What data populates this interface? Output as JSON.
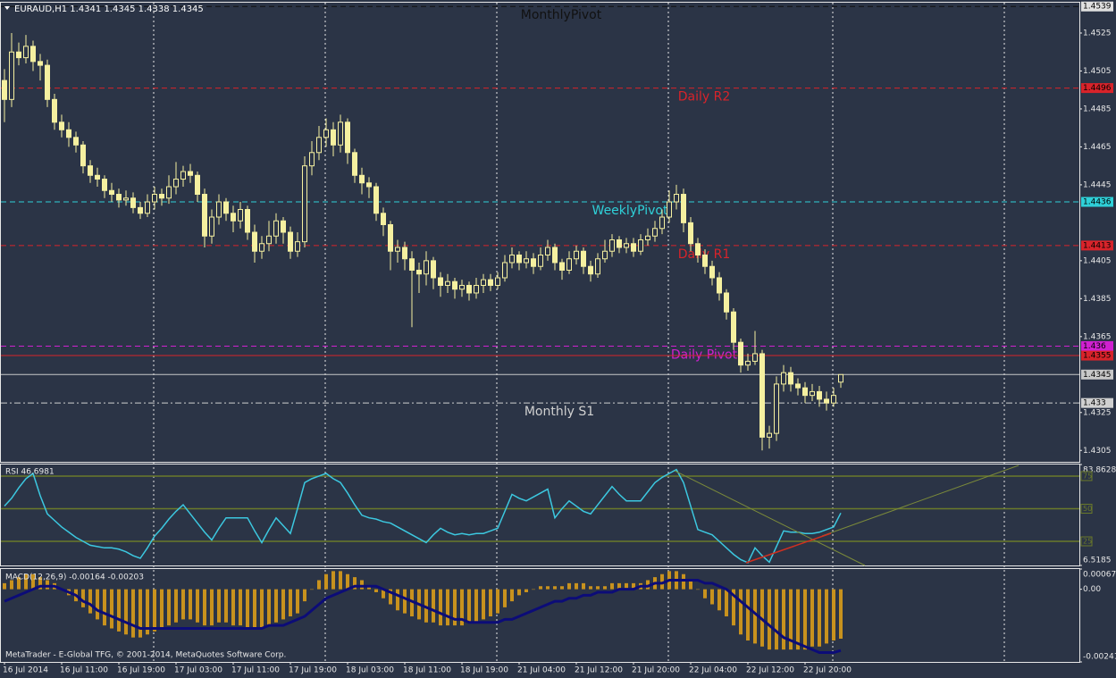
{
  "chart_data": [
    {
      "type": "candlestick",
      "title": "EURAUD,H1  1.4341 1.4345 1.4338 1.4345",
      "color": "#f5f0a0",
      "categories": [
        "16 Jul 2014",
        null,
        null,
        null,
        null,
        null,
        null,
        null,
        "16 Jul 11:00",
        null,
        null,
        null,
        null,
        null,
        null,
        null,
        "16 Jul 19:00",
        null,
        null,
        null,
        null,
        null,
        null,
        null,
        "17 Jul 03:00",
        null,
        null,
        null,
        null,
        null,
        null,
        null,
        "17 Jul 11:00",
        null,
        null,
        null,
        null,
        null,
        null,
        null,
        "17 Jul 19:00",
        null,
        null,
        null,
        null,
        null,
        null,
        null,
        "18 Jul 03:00",
        null,
        null,
        null,
        null,
        null,
        null,
        null,
        "18 Jul 11:00",
        null,
        null,
        null,
        null,
        null,
        null,
        null,
        "18 Jul 19:00",
        null,
        null,
        null,
        null,
        null,
        null,
        null,
        "21 Jul 04:00",
        null,
        null,
        null,
        null,
        null,
        null,
        null,
        "21 Jul 12:00",
        null,
        null,
        null,
        null,
        null,
        null,
        null,
        "21 Jul 20:00",
        null,
        null,
        null,
        null,
        null,
        null,
        null,
        "22 Jul 04:00",
        null,
        null,
        null,
        null,
        null,
        null,
        null,
        "22 Jul 12:00",
        null,
        null,
        null,
        null,
        null,
        null,
        null,
        "22 Jul 20:00",
        null,
        null,
        null,
        null,
        null
      ],
      "open": [
        1.45,
        1.449,
        1.4515,
        1.4512,
        1.4518,
        1.451,
        1.4508,
        1.449,
        1.4478,
        1.4474,
        1.447,
        1.4466,
        1.4455,
        1.445,
        1.4448,
        1.4442,
        1.444,
        1.4437,
        1.4438,
        1.4433,
        1.443,
        1.4436,
        1.444,
        1.4438,
        1.4444,
        1.4448,
        1.4452,
        1.445,
        1.444,
        1.4418,
        1.4428,
        1.4436,
        1.443,
        1.4426,
        1.4432,
        1.442,
        1.441,
        1.4414,
        1.4418,
        1.4426,
        1.442,
        1.441,
        1.4415,
        1.4455,
        1.4462,
        1.447,
        1.4474,
        1.4466,
        1.4478,
        1.4462,
        1.445,
        1.4446,
        1.4444,
        1.443,
        1.4424,
        1.441,
        1.4412,
        1.4406,
        1.44,
        1.4398,
        1.4405,
        1.4396,
        1.4392,
        1.4394,
        1.439,
        1.4392,
        1.4388,
        1.4392,
        1.4395,
        1.4392,
        1.4396,
        1.4404,
        1.4408,
        1.4404,
        1.4406,
        1.4402,
        1.4408,
        1.4412,
        1.4404,
        1.44,
        1.4406,
        1.441,
        1.4402,
        1.4398,
        1.4406,
        1.441,
        1.4416,
        1.4412,
        1.4414,
        1.441,
        1.4416,
        1.4418,
        1.4422,
        1.4428,
        1.4436,
        1.444,
        1.4425,
        1.4414,
        1.4408,
        1.4402,
        1.4396,
        1.4388,
        1.4378,
        1.4362,
        1.435,
        1.4352,
        1.4356,
        1.4312,
        1.4314,
        1.434,
        1.4346,
        1.434,
        1.4338,
        1.4334,
        1.4336,
        1.4332,
        1.433,
        1.4341
      ],
      "high": [
        1.4506,
        1.4525,
        1.452,
        1.4524,
        1.4521,
        1.4514,
        1.4511,
        1.4493,
        1.4482,
        1.4478,
        1.4473,
        1.4468,
        1.4458,
        1.4454,
        1.445,
        1.4446,
        1.4443,
        1.4442,
        1.4441,
        1.4436,
        1.444,
        1.4444,
        1.4443,
        1.445,
        1.4457,
        1.4455,
        1.4456,
        1.4452,
        1.4443,
        1.4432,
        1.444,
        1.4438,
        1.4434,
        1.4436,
        1.4434,
        1.4424,
        1.4418,
        1.4426,
        1.443,
        1.4428,
        1.4423,
        1.442,
        1.446,
        1.4468,
        1.4476,
        1.448,
        1.4478,
        1.4482,
        1.448,
        1.4464,
        1.4454,
        1.4449,
        1.4446,
        1.4433,
        1.4426,
        1.4416,
        1.4415,
        1.441,
        1.4404,
        1.441,
        1.4407,
        1.4399,
        1.4398,
        1.4396,
        1.4395,
        1.4394,
        1.4396,
        1.4398,
        1.4398,
        1.4399,
        1.4408,
        1.4412,
        1.441,
        1.441,
        1.4409,
        1.4412,
        1.4416,
        1.4414,
        1.4406,
        1.441,
        1.4413,
        1.4412,
        1.4405,
        1.4409,
        1.4416,
        1.4419,
        1.4418,
        1.4417,
        1.4417,
        1.4419,
        1.4422,
        1.4426,
        1.4432,
        1.4442,
        1.4445,
        1.4443,
        1.4428,
        1.4417,
        1.4411,
        1.4405,
        1.4399,
        1.439,
        1.438,
        1.4364,
        1.4356,
        1.4368,
        1.4358,
        1.4318,
        1.4344,
        1.435,
        1.4349,
        1.4343,
        1.4341,
        1.434,
        1.4339,
        1.4336,
        1.4338,
        1.4345
      ],
      "low": [
        1.4478,
        1.4486,
        1.4508,
        1.4509,
        1.4505,
        1.45,
        1.4486,
        1.4474,
        1.447,
        1.4465,
        1.4462,
        1.4451,
        1.4446,
        1.4444,
        1.4438,
        1.4436,
        1.4433,
        1.4434,
        1.443,
        1.4427,
        1.4428,
        1.4432,
        1.4434,
        1.4435,
        1.444,
        1.4444,
        1.4446,
        1.4436,
        1.4412,
        1.4414,
        1.4424,
        1.4426,
        1.442,
        1.4422,
        1.4416,
        1.4404,
        1.4406,
        1.441,
        1.4414,
        1.4414,
        1.4406,
        1.4407,
        1.4412,
        1.445,
        1.4458,
        1.4465,
        1.446,
        1.4462,
        1.4456,
        1.4446,
        1.444,
        1.4438,
        1.4426,
        1.4418,
        1.44,
        1.4404,
        1.44,
        1.437,
        1.4388,
        1.4392,
        1.439,
        1.4386,
        1.4388,
        1.4385,
        1.4386,
        1.4384,
        1.4385,
        1.4388,
        1.4389,
        1.439,
        1.4394,
        1.4401,
        1.44,
        1.4401,
        1.4398,
        1.44,
        1.4405,
        1.44,
        1.4395,
        1.4398,
        1.4403,
        1.4398,
        1.4394,
        1.4396,
        1.4404,
        1.4407,
        1.4409,
        1.4409,
        1.4407,
        1.4408,
        1.4413,
        1.4415,
        1.4419,
        1.4425,
        1.4432,
        1.442,
        1.441,
        1.4404,
        1.4398,
        1.4392,
        1.4384,
        1.4374,
        1.4358,
        1.4346,
        1.4347,
        1.435,
        1.4305,
        1.4306,
        1.431,
        1.4336,
        1.4336,
        1.4334,
        1.433,
        1.4331,
        1.4328,
        1.4326,
        1.4328,
        1.4338
      ],
      "close": [
        1.449,
        1.4515,
        1.4512,
        1.4518,
        1.451,
        1.4508,
        1.449,
        1.4478,
        1.4474,
        1.447,
        1.4466,
        1.4455,
        1.445,
        1.4448,
        1.4442,
        1.444,
        1.4437,
        1.4438,
        1.4433,
        1.443,
        1.4436,
        1.444,
        1.4438,
        1.4444,
        1.4448,
        1.4452,
        1.445,
        1.444,
        1.4418,
        1.4428,
        1.4436,
        1.443,
        1.4426,
        1.4432,
        1.442,
        1.441,
        1.4414,
        1.4418,
        1.4426,
        1.442,
        1.441,
        1.4415,
        1.4455,
        1.4462,
        1.447,
        1.4474,
        1.4466,
        1.4478,
        1.4462,
        1.445,
        1.4446,
        1.4444,
        1.443,
        1.4424,
        1.441,
        1.4412,
        1.4406,
        1.44,
        1.4398,
        1.4405,
        1.4396,
        1.4392,
        1.4394,
        1.439,
        1.4392,
        1.4388,
        1.4392,
        1.4395,
        1.4392,
        1.4396,
        1.4404,
        1.4408,
        1.4404,
        1.4406,
        1.4402,
        1.4408,
        1.4412,
        1.4404,
        1.44,
        1.4406,
        1.441,
        1.4402,
        1.4398,
        1.4406,
        1.441,
        1.4416,
        1.4412,
        1.4414,
        1.441,
        1.4416,
        1.4418,
        1.4422,
        1.4428,
        1.4436,
        1.444,
        1.4425,
        1.4414,
        1.4408,
        1.4402,
        1.4396,
        1.4388,
        1.4378,
        1.4362,
        1.435,
        1.4352,
        1.4356,
        1.4312,
        1.4314,
        1.434,
        1.4346,
        1.434,
        1.4338,
        1.4334,
        1.4336,
        1.4332,
        1.433,
        1.4334,
        1.4345
      ],
      "ylim": [
        1.4299,
        1.4541
      ],
      "yticks": [
        1.4525,
        1.4505,
        1.4485,
        1.4465,
        1.4445,
        1.4405,
        1.4385,
        1.4365,
        1.4325,
        1.4305
      ],
      "levels": [
        {
          "name": "MonthlyPivot",
          "value": 1.4539,
          "color": "#111111",
          "dash": "dash"
        },
        {
          "name": "Daily R2",
          "value": 1.4496,
          "color": "#d8232a",
          "dash": "dash"
        },
        {
          "name": "WeeklyPivot",
          "value": 1.4436,
          "color": "#2fd0d8",
          "dash": "dash"
        },
        {
          "name": "Daily R1",
          "value": 1.4413,
          "color": "#d8232a",
          "dash": "dash"
        },
        {
          "name": "Daily Pivot",
          "value": 1.436,
          "color": "#d020d0",
          "dash": "dash"
        },
        {
          "value": 1.4355,
          "color": "#d8232a",
          "dash": "solid"
        },
        {
          "value": 1.4345,
          "color": "#c8c8c8",
          "dash": "solid"
        },
        {
          "name": "Monthly S1",
          "value": 1.433,
          "color": "#d0d0d0",
          "dash": "dashdot"
        }
      ]
    },
    {
      "type": "line",
      "title": "RSI 46.6981",
      "color": "#3cc8e0",
      "values": [
        52,
        58,
        66,
        73,
        77,
        60,
        46,
        41,
        36,
        32,
        28,
        25,
        22,
        21,
        20,
        20,
        19,
        17,
        14,
        12,
        20,
        29,
        35,
        42,
        48,
        53,
        46,
        39,
        32,
        26,
        35,
        43,
        43,
        43,
        43,
        33,
        24,
        34,
        43,
        37,
        31,
        50,
        70,
        73,
        75,
        77,
        73,
        70,
        62,
        53,
        45,
        43,
        42,
        40,
        39,
        36,
        33,
        30,
        27,
        24,
        30,
        35,
        32,
        30,
        31,
        30,
        31,
        31,
        33,
        35,
        48,
        61,
        58,
        56,
        59,
        62,
        65,
        43,
        50,
        56,
        52,
        48,
        46,
        53,
        60,
        67,
        61,
        56,
        56,
        56,
        63,
        70,
        74,
        77,
        80,
        70,
        52,
        34,
        32,
        30,
        25,
        20,
        15,
        11,
        8.6,
        20,
        14,
        9,
        21,
        33,
        32,
        32,
        31,
        31,
        32,
        34,
        36,
        46.6981
      ],
      "ylim": [
        6.5185,
        83.8628
      ],
      "yticks": [
        83.8628,
        6.5185
      ],
      "levels": [
        75,
        50,
        25
      ],
      "level_color": "#6b7a2a"
    },
    {
      "type": "macd",
      "title": "MACD(12,26,9) -0.00164 -0.00203",
      "histogram": [
        0.0002,
        0.0003,
        0.0004,
        0.0005,
        0.0005,
        0.0004,
        0.0003,
        0.0002,
        0,
        -0.0002,
        -0.0004,
        -0.0006,
        -0.0008,
        -0.001,
        -0.0012,
        -0.0013,
        -0.0014,
        -0.0015,
        -0.0016,
        -0.0016,
        -0.0015,
        -0.0014,
        -0.0013,
        -0.0012,
        -0.0011,
        -0.001,
        -0.001,
        -0.0011,
        -0.0012,
        -0.0012,
        -0.0011,
        -0.0011,
        -0.0012,
        -0.0012,
        -0.0013,
        -0.0013,
        -0.0013,
        -0.0012,
        -0.0011,
        -0.001,
        -0.0009,
        -0.0008,
        -0.0004,
        0,
        0.0003,
        0.0005,
        0.0006,
        0.0006,
        0.0005,
        0.0004,
        0.0003,
        0.0001,
        -0.0001,
        -0.0003,
        -0.0005,
        -0.0007,
        -0.0008,
        -0.0009,
        -0.001,
        -0.0011,
        -0.0011,
        -0.0012,
        -0.0012,
        -0.0012,
        -0.0012,
        -0.0011,
        -0.0011,
        -0.001,
        -0.0009,
        -0.0008,
        -0.0006,
        -0.0004,
        -0.0002,
        -0.0001,
        0,
        0.0001,
        0.0001,
        0.0001,
        0.0001,
        0.0002,
        0.0002,
        0.0002,
        0.0001,
        0.0001,
        0.0001,
        0.0002,
        0.0002,
        0.0002,
        0.0002,
        0.0002,
        0.0003,
        0.0004,
        0.0005,
        0.0006,
        0.0006,
        0.0005,
        0.0003,
        0,
        -0.0003,
        -0.0005,
        -0.0007,
        -0.0009,
        -0.0012,
        -0.0015,
        -0.0017,
        -0.0018,
        -0.0019,
        -0.002,
        -0.002,
        -0.002,
        -0.002,
        -0.002,
        -0.002,
        -0.0019,
        -0.0019,
        -0.0018,
        -0.0017,
        -0.00164
      ],
      "histogram_color": "#c8921e",
      "signal": [
        -0.0004,
        -0.0003,
        -0.0002,
        -0.0001,
        0,
        0.0001,
        0.0001,
        0.0001,
        0,
        -0.0001,
        -0.0002,
        -0.0004,
        -0.0005,
        -0.0007,
        -0.0008,
        -0.0009,
        -0.001,
        -0.0011,
        -0.0012,
        -0.0013,
        -0.0013,
        -0.0013,
        -0.0013,
        -0.0013,
        -0.0013,
        -0.0013,
        -0.0013,
        -0.0013,
        -0.0013,
        -0.0013,
        -0.0013,
        -0.0013,
        -0.0013,
        -0.0013,
        -0.0013,
        -0.0013,
        -0.0013,
        -0.0012,
        -0.0012,
        -0.0012,
        -0.0011,
        -0.001,
        -0.0009,
        -0.0007,
        -0.0005,
        -0.0003,
        -0.0002,
        -0.0001,
        0,
        0.0001,
        0.0001,
        0.0001,
        0.0001,
        0,
        -0.0001,
        -0.0002,
        -0.0003,
        -0.0004,
        -0.0005,
        -0.0006,
        -0.0007,
        -0.0008,
        -0.0009,
        -0.001,
        -0.001,
        -0.0011,
        -0.0011,
        -0.0011,
        -0.0011,
        -0.0011,
        -0.001,
        -0.001,
        -0.0009,
        -0.0008,
        -0.0007,
        -0.0006,
        -0.0005,
        -0.0004,
        -0.0004,
        -0.0003,
        -0.0003,
        -0.0002,
        -0.0002,
        -0.0001,
        -0.0001,
        -0.0001,
        0,
        0,
        0,
        0.0001,
        0.0001,
        0.0002,
        0.0002,
        0.0003,
        0.0003,
        0.0003,
        0.0003,
        0.0003,
        0.0002,
        0.0002,
        0.0001,
        0,
        -0.0002,
        -0.0004,
        -0.0006,
        -0.0008,
        -0.001,
        -0.0012,
        -0.0014,
        -0.0016,
        -0.0017,
        -0.0018,
        -0.0019,
        -0.002,
        -0.0021,
        -0.0021,
        -0.0021,
        -0.00203
      ],
      "signal_color": "#0c0c78",
      "ylim": [
        -0.00241,
        0.00067
      ],
      "yticks": [
        0.00067,
        {
          "value": 0,
          "label": "0.00"
        },
        -0.00241
      ]
    }
  ],
  "footer": "MetaTrader - E-Global TFG, © 2001-2014, MetaQuotes Software Corp."
}
